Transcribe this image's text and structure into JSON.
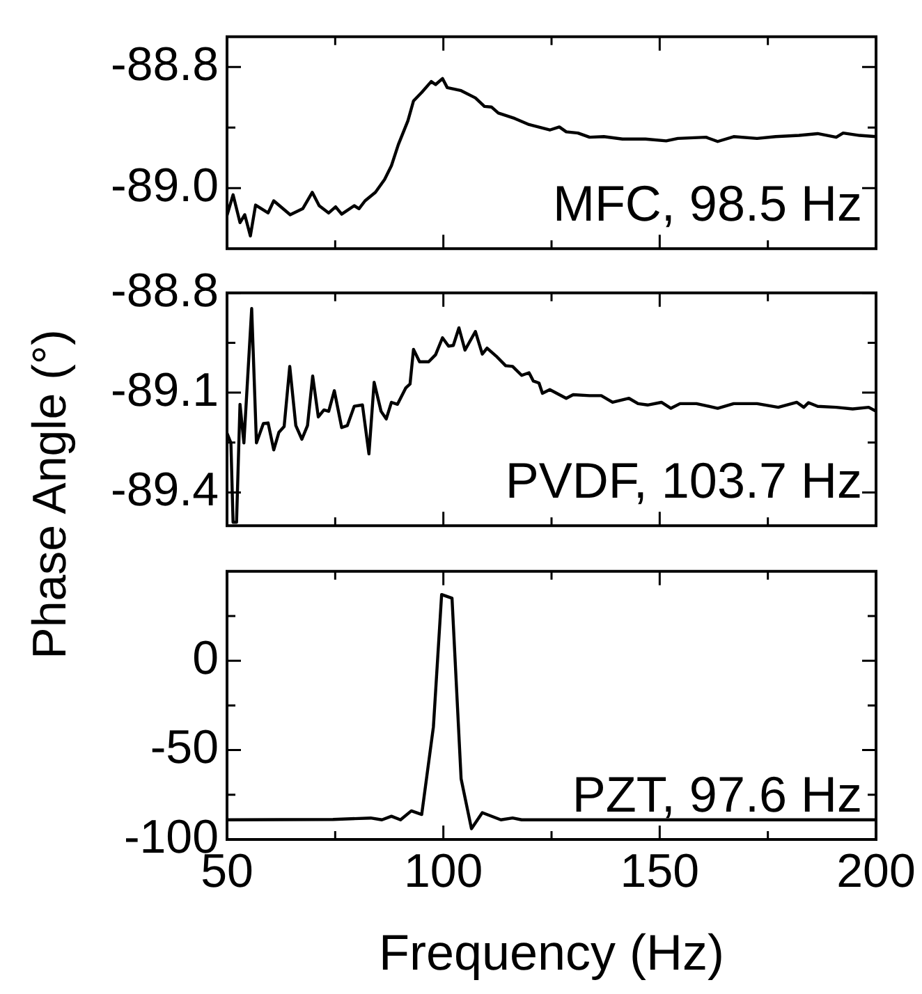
{
  "chart_data": [
    {
      "type": "line",
      "color": "#000000",
      "marker": "none",
      "tick_labels": "y",
      "annotations": [
        "MFC, 98.5 Hz"
      ],
      "xlim": [
        50,
        200
      ],
      "xticks": [
        50,
        {
          "value": 75,
          "label": null
        },
        100,
        {
          "value": 125,
          "label": null
        },
        150,
        {
          "value": 175,
          "label": null
        },
        200
      ],
      "ylim": [
        -89.1,
        -88.75
      ],
      "yticks": [
        {
          "value": -89,
          "label": "-89.0"
        },
        {
          "value": -88.9,
          "label": null
        },
        -88.8
      ],
      "x": [
        50,
        51.4,
        53,
        54.1,
        55.4,
        56.6,
        59.5,
        60.8,
        64.6,
        67.5,
        69.7,
        71.3,
        73.5,
        75.1,
        76.5,
        79.4,
        80.5,
        81.9,
        84.3,
        86.4,
        88,
        89.6,
        91.8,
        93.1,
        95,
        97.2,
        98.2,
        99.8,
        100.9,
        104.1,
        107.4,
        109.5,
        111.1,
        112.7,
        116.5,
        119.8,
        124.6,
        126.8,
        128.4,
        131.1,
        133.8,
        137.1,
        141.4,
        146.7,
        151.5,
        154.2,
        160.7,
        163.4,
        167.1,
        172.5,
        176.8,
        182.2,
        186.5,
        190.8,
        192.4,
        196.2,
        200
      ],
      "values": [
        -89.045,
        -89.011,
        -89.057,
        -89.044,
        -89.079,
        -89.028,
        -89.041,
        -89.021,
        -89.044,
        -89.034,
        -89.007,
        -89.029,
        -89.041,
        -89.031,
        -89.043,
        -89.029,
        -89.034,
        -89.021,
        -89.007,
        -88.986,
        -88.963,
        -88.928,
        -88.889,
        -88.856,
        -88.842,
        -88.824,
        -88.829,
        -88.819,
        -88.834,
        -88.839,
        -88.851,
        -88.865,
        -88.866,
        -88.876,
        -88.885,
        -88.895,
        -88.904,
        -88.899,
        -88.907,
        -88.909,
        -88.916,
        -88.915,
        -88.919,
        -88.919,
        -88.922,
        -88.918,
        -88.916,
        -88.923,
        -88.915,
        -88.918,
        -88.915,
        -88.913,
        -88.91,
        -88.916,
        -88.909,
        -88.913,
        -88.915
      ]
    },
    {
      "type": "line",
      "color": "#000000",
      "marker": "none",
      "tick_labels": "y",
      "ylabel": "Phase Angle (°)",
      "annotations": [
        "PVDF, 103.7 Hz"
      ],
      "xlim": [
        50,
        200
      ],
      "xticks": [
        50,
        {
          "value": 75,
          "label": null
        },
        100,
        {
          "value": 125,
          "label": null
        },
        150,
        {
          "value": 175,
          "label": null
        },
        200
      ],
      "ylim": [
        -89.5,
        -88.8
      ],
      "yticks": [
        -89.4,
        {
          "value": -89.25,
          "label": null
        },
        -89.1,
        {
          "value": -88.95,
          "label": null
        },
        -88.8
      ],
      "x": [
        50,
        50.9,
        51.4,
        52.2,
        53,
        53.9,
        55.7,
        56.8,
        58.4,
        59.5,
        60.8,
        62,
        63.2,
        64.5,
        65.9,
        67.3,
        68.6,
        69.8,
        71.1,
        72.4,
        73.5,
        74.8,
        76.5,
        77.8,
        79.4,
        81.3,
        82.8,
        84,
        85.6,
        86.8,
        88,
        89.4,
        91.3,
        92.3,
        93.1,
        94.5,
        96.6,
        98.2,
        99.8,
        101.2,
        102.3,
        103.6,
        105,
        107.4,
        109,
        110.1,
        112.2,
        114.4,
        116,
        118.1,
        119.8,
        120.8,
        122.1,
        122.9,
        124.6,
        128.4,
        130,
        133.8,
        136.5,
        139.1,
        142.9,
        145,
        147.2,
        150.4,
        152.6,
        154.7,
        158.5,
        163.4,
        167.1,
        172.5,
        177.4,
        181.7,
        183.3,
        184.4,
        186.5,
        190.8,
        194.6,
        198.3,
        200
      ],
      "values": [
        -89.222,
        -89.251,
        -89.49,
        -89.49,
        -89.135,
        -89.251,
        -88.847,
        -89.251,
        -89.193,
        -89.191,
        -89.272,
        -89.219,
        -89.202,
        -89.021,
        -89.199,
        -89.24,
        -89.199,
        -89.05,
        -89.173,
        -89.152,
        -89.156,
        -89.094,
        -89.205,
        -89.199,
        -89.141,
        -89.137,
        -89.284,
        -89.069,
        -89.156,
        -89.179,
        -89.129,
        -89.135,
        -89.086,
        -89.074,
        -88.97,
        -89.007,
        -89.007,
        -88.986,
        -88.935,
        -88.96,
        -88.958,
        -88.905,
        -88.972,
        -88.916,
        -88.984,
        -88.966,
        -88.99,
        -89.019,
        -89.021,
        -89.048,
        -89.04,
        -89.065,
        -89.071,
        -89.102,
        -89.091,
        -89.117,
        -89.106,
        -89.109,
        -89.109,
        -89.129,
        -89.117,
        -89.133,
        -89.137,
        -89.129,
        -89.147,
        -89.133,
        -89.133,
        -89.147,
        -89.133,
        -89.133,
        -89.144,
        -89.129,
        -89.144,
        -89.13,
        -89.141,
        -89.144,
        -89.149,
        -89.144,
        -89.156
      ]
    },
    {
      "type": "line",
      "color": "#000000",
      "marker": "none",
      "xlabel": "Frequency (Hz)",
      "annotations": [
        "PZT, 97.6 Hz"
      ],
      "xlim": [
        50,
        200
      ],
      "xticks": [
        50,
        {
          "value": 75,
          "label": null
        },
        100,
        {
          "value": 125,
          "label": null
        },
        150,
        {
          "value": 175,
          "label": null
        },
        200
      ],
      "ylim": [
        -100,
        50
      ],
      "yticks": [
        -100,
        {
          "value": -75,
          "label": null
        },
        -50,
        {
          "value": -25,
          "label": null
        },
        0,
        {
          "value": 25,
          "label": null
        }
      ],
      "x": [
        50,
        74.5,
        83.2,
        85.8,
        88,
        90.1,
        92.6,
        95,
        97.7,
        99.6,
        102,
        104.1,
        106.5,
        109,
        113.3,
        116,
        118.1,
        128.4,
        200
      ],
      "values": [
        -89,
        -88.8,
        -88,
        -89,
        -87,
        -89,
        -84,
        -86,
        -37,
        37,
        35,
        -66,
        -94,
        -85,
        -89,
        -88,
        -89,
        -89,
        -89
      ]
    }
  ]
}
